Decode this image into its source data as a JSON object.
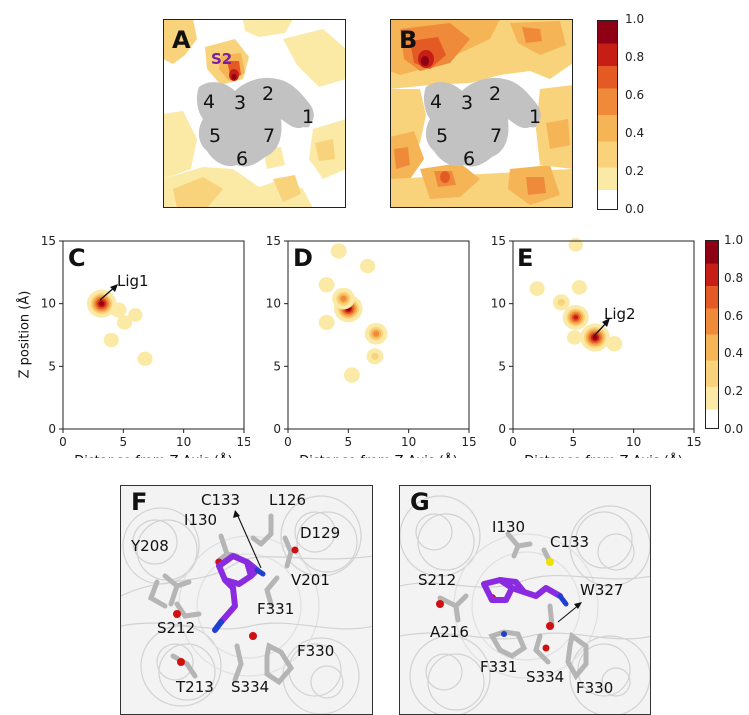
{
  "figure": {
    "colors": {
      "c0": "#ffffff",
      "c1": "#fbe9a6",
      "c2": "#f9d27c",
      "c3": "#f5b455",
      "c4": "#ef8a3a",
      "c5": "#e35a25",
      "c6": "#c61d16",
      "c7": "#8e0013",
      "region": "#c2c2c2",
      "ligand": "#8a2be2",
      "stick": "#b5b5b5"
    },
    "panel_labels": {
      "A": "A",
      "B": "B",
      "C": "C",
      "D": "D",
      "E": "E",
      "F": "F",
      "G": "G"
    },
    "regions": [
      "1",
      "2",
      "3",
      "4",
      "5",
      "6",
      "7"
    ],
    "s2_label": "S2",
    "colorbar_ticks": [
      "1.0",
      "0.8",
      "0.6",
      "0.4",
      "0.2",
      "0.0"
    ],
    "lig_labels": {
      "lig1": "Lig1",
      "lig2": "Lig2"
    },
    "panelF_residues": [
      "C133",
      "L126",
      "I130",
      "D129",
      "Y208",
      "V201",
      "F331",
      "S212",
      "F330",
      "T213",
      "S334"
    ],
    "panelG_residues": [
      "I130",
      "C133",
      "S212",
      "W327",
      "A216",
      "F331",
      "S334",
      "F330"
    ]
  },
  "chart_data": [
    {
      "type": "heatmap",
      "panel": "A",
      "title": "",
      "xlabel": "",
      "ylabel": "",
      "zlim": [
        0,
        1
      ],
      "hotspots": [
        {
          "label": "S2",
          "value": 1.0
        }
      ]
    },
    {
      "type": "heatmap",
      "panel": "B",
      "title": "",
      "xlabel": "",
      "ylabel": "",
      "zlim": [
        0,
        1
      ]
    },
    {
      "type": "heatmap",
      "panel": "C",
      "xlabel": "Distance from Z Axis (Å)",
      "ylabel": "Z position (Å)",
      "xlim": [
        0,
        15
      ],
      "ylim": [
        0,
        15
      ],
      "xticks": [
        "0",
        "5",
        "10",
        "15"
      ],
      "yticks": [
        "0",
        "5",
        "10",
        "15"
      ],
      "zlim": [
        0,
        1
      ],
      "points": [
        {
          "x": 3.2,
          "y": 10.0,
          "value": 1.0
        },
        {
          "x": 4.6,
          "y": 9.5,
          "value": 0.2
        },
        {
          "x": 5.1,
          "y": 8.5,
          "value": 0.15
        },
        {
          "x": 4.0,
          "y": 7.1,
          "value": 0.15
        },
        {
          "x": 6.8,
          "y": 5.6,
          "value": 0.15
        },
        {
          "x": 6.0,
          "y": 9.1,
          "value": 0.1
        }
      ],
      "annotation": "Lig1"
    },
    {
      "type": "heatmap",
      "panel": "D",
      "xlabel": "Distance from Z Axis (Å)",
      "xlim": [
        0,
        15
      ],
      "ylim": [
        0,
        15
      ],
      "xticks": [
        "0",
        "5",
        "10",
        "15"
      ],
      "yticks": [
        "0",
        "5",
        "10",
        "15"
      ],
      "zlim": [
        0,
        1
      ],
      "points": [
        {
          "x": 5.0,
          "y": 9.6,
          "value": 0.95
        },
        {
          "x": 4.6,
          "y": 10.4,
          "value": 0.6
        },
        {
          "x": 7.3,
          "y": 7.6,
          "value": 0.6
        },
        {
          "x": 3.2,
          "y": 11.5,
          "value": 0.2
        },
        {
          "x": 7.2,
          "y": 5.8,
          "value": 0.25
        },
        {
          "x": 5.3,
          "y": 4.3,
          "value": 0.2
        },
        {
          "x": 4.2,
          "y": 14.2,
          "value": 0.2
        },
        {
          "x": 6.6,
          "y": 13.0,
          "value": 0.15
        },
        {
          "x": 3.2,
          "y": 8.5,
          "value": 0.2
        }
      ]
    },
    {
      "type": "heatmap",
      "panel": "E",
      "xlabel": "Distance from Z Axis (Å)",
      "xlim": [
        0,
        15
      ],
      "ylim": [
        0,
        15
      ],
      "xticks": [
        "0",
        "5",
        "10",
        "15"
      ],
      "yticks": [
        "0",
        "5",
        "10",
        "15"
      ],
      "zlim": [
        0,
        1
      ],
      "points": [
        {
          "x": 6.8,
          "y": 7.3,
          "value": 1.0
        },
        {
          "x": 5.2,
          "y": 8.9,
          "value": 0.8
        },
        {
          "x": 4.0,
          "y": 10.1,
          "value": 0.25
        },
        {
          "x": 8.4,
          "y": 6.8,
          "value": 0.2
        },
        {
          "x": 5.5,
          "y": 11.3,
          "value": 0.15
        },
        {
          "x": 2.0,
          "y": 11.2,
          "value": 0.15
        },
        {
          "x": 5.2,
          "y": 14.7,
          "value": 0.1
        },
        {
          "x": 5.1,
          "y": 7.3,
          "value": 0.15
        }
      ],
      "annotation": "Lig2"
    }
  ]
}
